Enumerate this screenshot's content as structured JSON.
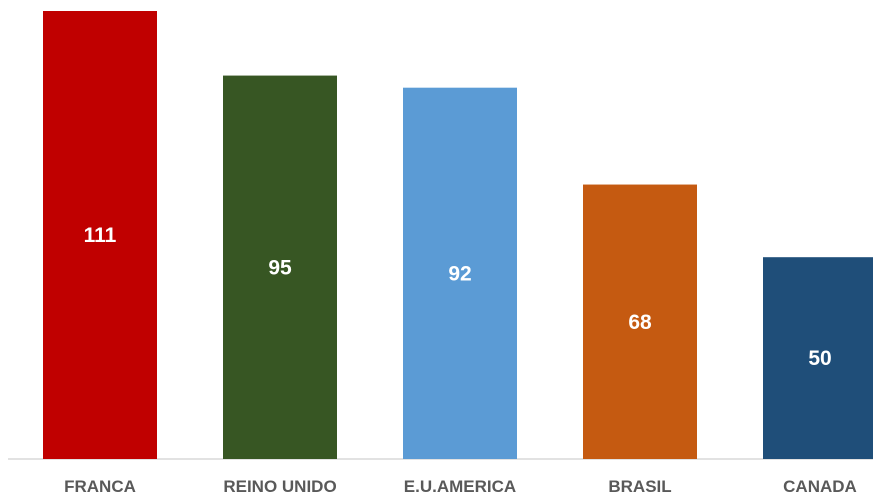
{
  "chart_data": {
    "type": "bar",
    "categories": [
      "FRANCA",
      "REINO UNIDO",
      "E.U.AMERICA",
      "BRASIL",
      "CANADA"
    ],
    "values": [
      111,
      95,
      92,
      68,
      50
    ],
    "colors": [
      "#c00000",
      "#375623",
      "#5b9bd5",
      "#c55a11",
      "#1f4e79"
    ],
    "data_labels": [
      "111",
      "95",
      "92",
      "68",
      "50"
    ],
    "title": "",
    "xlabel": "",
    "ylabel": "",
    "ylim": [
      0,
      111
    ],
    "grid": false,
    "legend": "none",
    "axis_line_color": "#d9d9d9"
  }
}
